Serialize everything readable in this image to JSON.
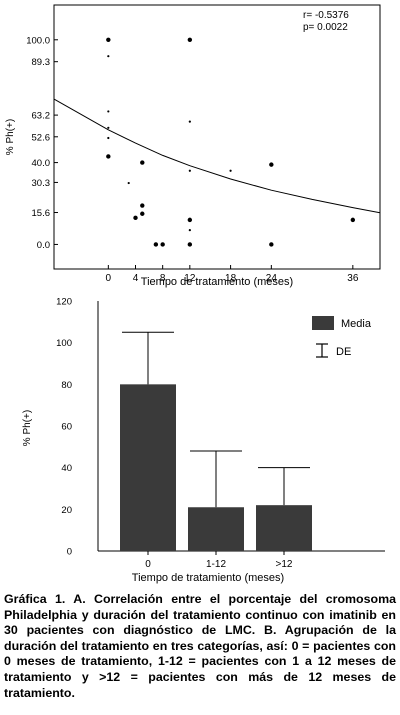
{
  "chart_data": [
    {
      "type": "scatter",
      "title": "",
      "xlabel": "Tiempo de tratamiento (meses)",
      "ylabel": "% Ph(+)",
      "x_ticks": [
        "0",
        "4",
        "8",
        "12",
        "18",
        "24",
        "36"
      ],
      "x_tick_values": [
        0,
        4,
        8,
        12,
        18,
        24,
        36
      ],
      "y_ticks": [
        "0.0",
        "15.6",
        "30.3",
        "40.0",
        "52.6",
        "63.2",
        "89.3",
        "100.0"
      ],
      "y_tick_values": [
        0,
        15.6,
        30.3,
        40,
        52.6,
        63.2,
        89.3,
        100
      ],
      "xlim": [
        -8,
        40
      ],
      "ylim": [
        -12,
        117
      ],
      "annotations": [
        "r= -0.5376",
        "p= 0.0022"
      ],
      "points": [
        {
          "x": 0,
          "y": 100,
          "size": "large"
        },
        {
          "x": 0,
          "y": 92,
          "size": "small"
        },
        {
          "x": 0,
          "y": 65,
          "size": "small"
        },
        {
          "x": 0,
          "y": 57,
          "size": "small"
        },
        {
          "x": 0,
          "y": 52,
          "size": "small"
        },
        {
          "x": 0,
          "y": 43,
          "size": "large"
        },
        {
          "x": 3,
          "y": 30,
          "size": "small"
        },
        {
          "x": 4,
          "y": 13,
          "size": "large"
        },
        {
          "x": 5,
          "y": 40,
          "size": "large"
        },
        {
          "x": 5,
          "y": 19,
          "size": "large"
        },
        {
          "x": 5,
          "y": 15,
          "size": "large"
        },
        {
          "x": 7,
          "y": 0,
          "size": "large"
        },
        {
          "x": 8,
          "y": 0,
          "size": "large"
        },
        {
          "x": 12,
          "y": 100,
          "size": "large"
        },
        {
          "x": 12,
          "y": 60,
          "size": "small"
        },
        {
          "x": 12,
          "y": 36,
          "size": "small"
        },
        {
          "x": 12,
          "y": 12,
          "size": "large"
        },
        {
          "x": 12,
          "y": 7,
          "size": "small"
        },
        {
          "x": 12,
          "y": 0,
          "size": "large"
        },
        {
          "x": 18,
          "y": 36,
          "size": "small"
        },
        {
          "x": 24,
          "y": 39,
          "size": "large"
        },
        {
          "x": 24,
          "y": 0,
          "size": "large"
        },
        {
          "x": 36,
          "y": 12,
          "size": "large"
        }
      ],
      "trend_curve": {
        "x": [
          -8,
          0,
          4,
          8,
          12,
          18,
          24,
          30,
          36,
          40
        ],
        "y": [
          71,
          56,
          49.5,
          43.5,
          38.5,
          32,
          26.5,
          22,
          18,
          15.5
        ]
      }
    },
    {
      "type": "bar",
      "title": "",
      "xlabel": "Tiempo de tratamiento (meses)",
      "ylabel": "% Ph(+)",
      "categories": [
        "0",
        "1-12",
        ">12"
      ],
      "series": [
        {
          "name": "Media",
          "values": [
            80,
            21,
            22
          ]
        }
      ],
      "error_upper": [
        105,
        48,
        40
      ],
      "ylim": [
        0,
        120
      ],
      "y_ticks": [
        "0",
        "20",
        "40",
        "60",
        "80",
        "100",
        "120"
      ],
      "y_tick_values": [
        0,
        20,
        40,
        60,
        80,
        100,
        120
      ],
      "legend": {
        "bar_label": "Media",
        "error_label": "DE",
        "placement": "top-right"
      },
      "bar_color": "#3a3a3a"
    }
  ],
  "caption": "Gráfica 1. A. Correlación entre el porcentaje del cromosoma Philadelphia y duración del tratamiento continuo con imatinib en 30 pacientes con diagnóstico de LMC. B. Agrupación de la duración del tratamiento en tres categorías, así: 0 = pacientes con 0 meses de tratamiento, 1-12 = pacientes con 1 a 12 meses de tratamiento y >12 = pacientes con más de 12 meses de tratamiento."
}
